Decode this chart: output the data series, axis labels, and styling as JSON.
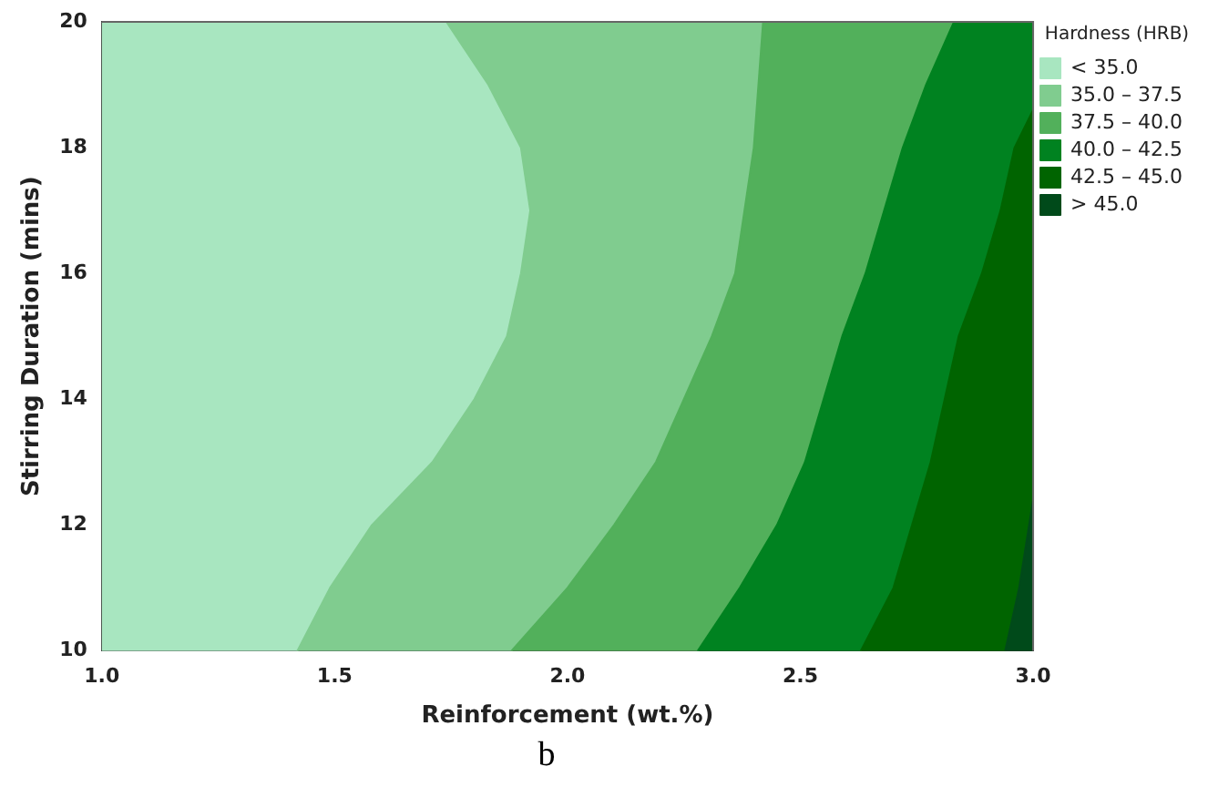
{
  "chart_data": {
    "type": "area",
    "xlabel": "Reinforcement (wt.%)",
    "ylabel": "Stirring Duration (mins)",
    "legend_title": "Hardness (HRB)",
    "legend": "top right",
    "grid": false,
    "marker": "none",
    "xlim": [
      1.0,
      3.0
    ],
    "xticks": [
      {
        "value": 1.0,
        "label": "1.0"
      },
      {
        "value": 1.5,
        "label": "1.5"
      },
      {
        "value": 2.0,
        "label": "2.0"
      },
      {
        "value": 2.5,
        "label": "2.5"
      },
      {
        "value": 3.0,
        "label": "3.0"
      }
    ],
    "ylim": [
      10,
      20
    ],
    "yticks": [
      10,
      12,
      14,
      16,
      18,
      20
    ],
    "annotations": [
      "b"
    ],
    "series": [
      {
        "name": "< 35.0",
        "color": "#a8e6c0",
        "x": [
          1.74,
          1.83,
          1.9,
          1.92,
          1.9,
          1.87,
          1.8,
          1.71,
          1.58,
          1.49,
          1.42,
          1.0,
          1.0
        ],
        "values": [
          20,
          19,
          18,
          17,
          16,
          15,
          14,
          13,
          12,
          11,
          10,
          10,
          20
        ]
      },
      {
        "name": "35.0 – 37.5",
        "color": "#80cc8f",
        "x": [
          2.42,
          2.4,
          2.36,
          2.31,
          2.25,
          2.19,
          2.1,
          2.0,
          1.88,
          1.42,
          1.49,
          1.58,
          1.71,
          1.8,
          1.87,
          1.9,
          1.92,
          1.9,
          1.83,
          1.74
        ],
        "values": [
          20,
          18,
          16,
          15,
          14,
          13,
          12,
          11,
          10,
          10,
          11,
          12,
          13,
          14,
          15,
          16,
          17,
          18,
          19,
          20
        ]
      },
      {
        "name": "37.5 – 40.0",
        "color": "#52b05b",
        "x": [
          2.83,
          2.77,
          2.72,
          2.68,
          2.64,
          2.59,
          2.55,
          2.51,
          2.45,
          2.37,
          2.28,
          1.88,
          2.0,
          2.1,
          2.19,
          2.25,
          2.31,
          2.36,
          2.4,
          2.42
        ],
        "values": [
          20,
          19,
          18,
          17,
          16,
          15,
          14,
          13,
          12,
          11,
          10,
          10,
          11,
          12,
          13,
          14,
          15,
          16,
          18,
          20
        ]
      },
      {
        "name": "40.0 – 42.5",
        "color": "#008220",
        "x": [
          3.0,
          3.0,
          2.96,
          2.93,
          2.89,
          2.84,
          2.81,
          2.78,
          2.74,
          2.7,
          2.63,
          2.28,
          2.37,
          2.45,
          2.51,
          2.55,
          2.59,
          2.64,
          2.68,
          2.72,
          2.77,
          2.83
        ],
        "values": [
          20,
          18.6,
          18,
          17,
          16,
          15,
          14,
          13,
          12,
          11,
          10,
          10,
          11,
          12,
          13,
          14,
          15,
          16,
          17,
          18,
          19,
          20
        ]
      },
      {
        "name": "42.5 – 45.0",
        "color": "#006400",
        "x": [
          3.0,
          3.0,
          2.97,
          2.94,
          2.63,
          2.7,
          2.74,
          2.78,
          2.81,
          2.84,
          2.89,
          2.93,
          2.96
        ],
        "values": [
          18.6,
          12.4,
          11,
          10,
          10,
          11,
          12,
          13,
          14,
          15,
          16,
          17,
          18
        ]
      },
      {
        "name": "> 45.0",
        "color": "#004a1a",
        "x": [
          3.0,
          3.0,
          2.94,
          2.97
        ],
        "values": [
          12.4,
          10,
          10,
          11
        ]
      }
    ]
  }
}
